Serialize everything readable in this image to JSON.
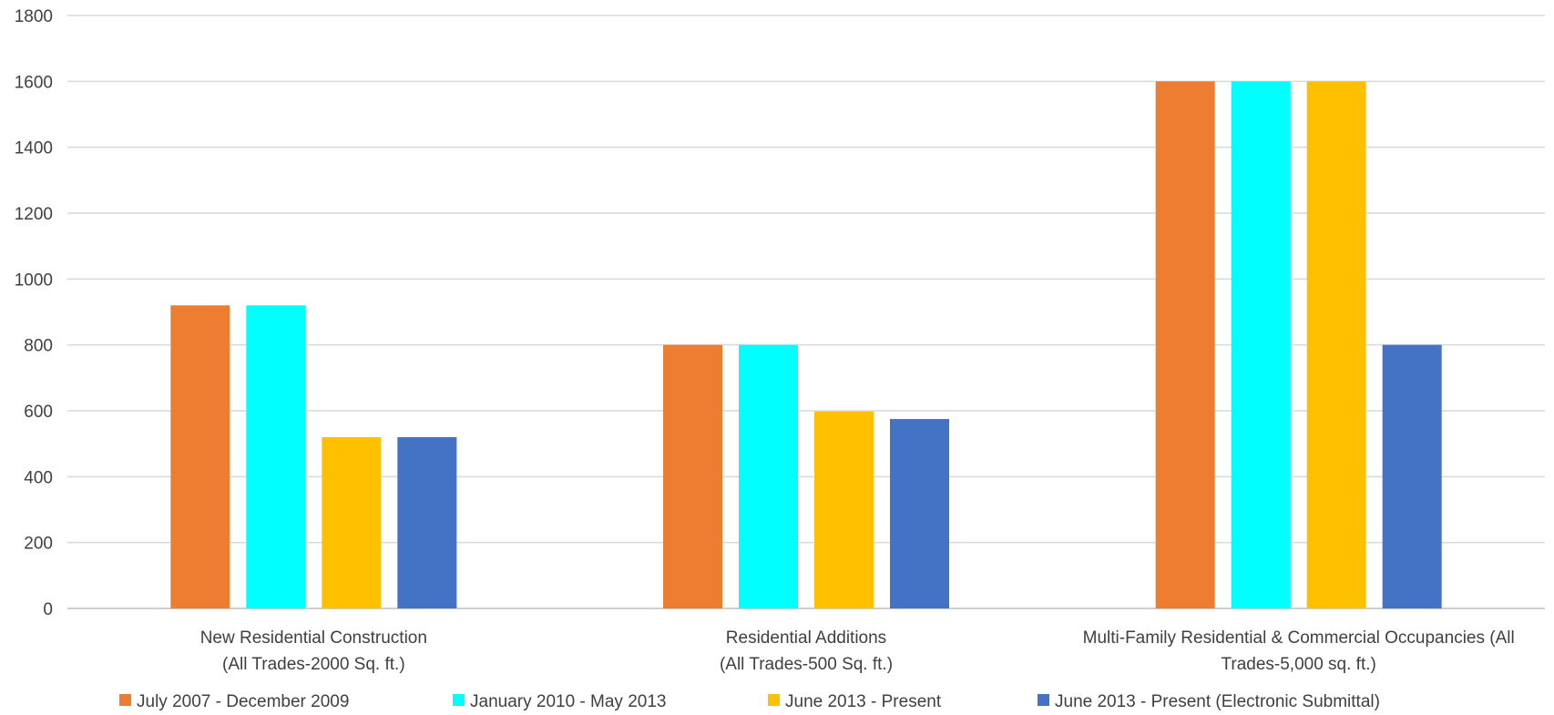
{
  "chart_data": {
    "type": "bar",
    "categories": [
      [
        "New Residential Construction",
        "(All Trades-2000 Sq. ft.)"
      ],
      [
        "Residential Additions",
        "(All Trades-500 Sq. ft.)"
      ],
      [
        "Multi-Family Residential & Commercial Occupancies (All",
        "Trades-5,000 sq. ft.)"
      ]
    ],
    "series": [
      {
        "name": "July 2007 - December 2009",
        "color": "#ED7D31",
        "values": [
          920,
          800,
          1600
        ]
      },
      {
        "name": "January 2010 - May 2013",
        "color": "#00FFFF",
        "values": [
          920,
          800,
          1600
        ]
      },
      {
        "name": "June 2013 - Present",
        "color": "#FFC000",
        "values": [
          520,
          598,
          1600
        ]
      },
      {
        "name": "June 2013 - Present (Electronic Submittal)",
        "color": "#4472C4",
        "values": [
          520,
          575,
          800
        ]
      }
    ],
    "title": "",
    "xlabel": "",
    "ylabel": "",
    "ylim": [
      0,
      1800
    ],
    "yticks": [
      0,
      200,
      400,
      600,
      800,
      1000,
      1200,
      1400,
      1600,
      1800
    ],
    "grid": true,
    "legend_position": "bottom"
  }
}
